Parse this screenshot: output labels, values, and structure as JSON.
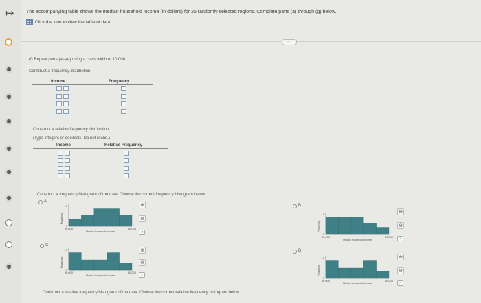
{
  "nav": {
    "arrow": "↦"
  },
  "header": {
    "text": "The accompanying table shows the median household income (in dollars) for 25 randomly selected regions. Complete parts (a) through (g) below.",
    "table_link": "Click the icon to view the table of data."
  },
  "more_pill": "·····",
  "part_f": {
    "title": "(f) Repeat parts (a)–(e) using a class width of 10,000.",
    "freq_prompt": "Construct a frequency distribution.",
    "freq_table": {
      "col1": "Income",
      "col2": "Frequency",
      "rows": 4
    },
    "rel_prompt": "Construct a relative frequency distribution.",
    "rel_hint": "(Type integers or decimals. Do not round.)",
    "rel_table": {
      "col1": "Income",
      "col2": "Relative Frequency",
      "rows": 4
    },
    "hist_prompt": "Construct a frequency histogram of the data. Choose the correct frequency histogram below.",
    "rel_hist_prompt": "Construct a relative frequency histogram of the data. Choose the correct relative frequency histogram below."
  },
  "options": [
    {
      "label": "A.",
      "y_top": "10",
      "x_left": "30,000",
      "x_right": "80,000",
      "xlabel": "Median Household Income",
      "ylabel": "Frequency",
      "bars": [
        0.35,
        0.55,
        0.85,
        0.85,
        0.55
      ]
    },
    {
      "label": "B.",
      "y_top": "10",
      "x_left": "30,000",
      "x_right": "80,000",
      "xlabel": "Median Household Income",
      "ylabel": "Frequency",
      "bars": [
        0.85,
        0.85,
        0.85,
        0.55,
        0.35
      ]
    },
    {
      "label": "C.",
      "y_top": "10",
      "x_left": "30,000",
      "x_right": "80,000",
      "xlabel": "Median Household Income",
      "ylabel": "Frequency",
      "bars": [
        0.85,
        0.5,
        0.5,
        0.85,
        0.35
      ]
    },
    {
      "label": "D.",
      "y_top": "10",
      "x_left": "30,000",
      "x_right": "80,000",
      "xlabel": "Median Household Income",
      "ylabel": "Frequency",
      "bars": [
        0.85,
        0.5,
        0.5,
        0.85,
        0.35
      ]
    }
  ],
  "colors": {
    "bar": "#3f7f86",
    "current": "#e8a33d"
  },
  "icons": {
    "zoom_in": "⊕",
    "zoom_out": "⊖",
    "external": "↗",
    "table": "table-icon"
  }
}
